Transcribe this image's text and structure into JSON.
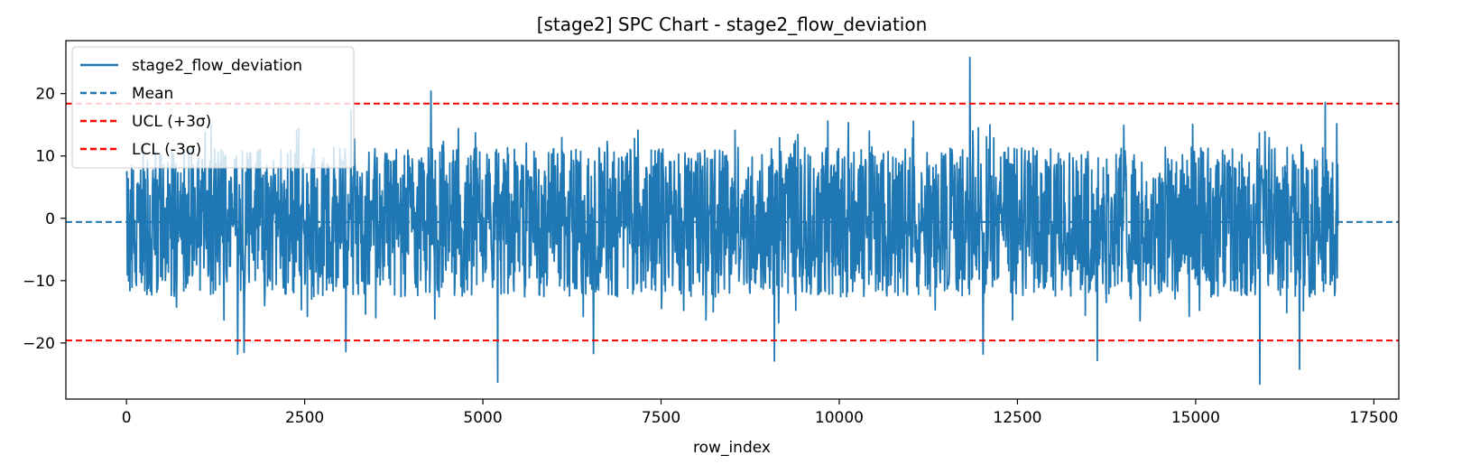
{
  "chart_data": {
    "type": "line",
    "title": "[stage2] SPC Chart - stage2_flow_deviation",
    "xlabel": "row_index",
    "ylabel": "",
    "xlim": [
      -850,
      17850
    ],
    "ylim": [
      -29.0,
      28.5
    ],
    "x_ticks": [
      0,
      2500,
      5000,
      7500,
      10000,
      12500,
      15000,
      17500
    ],
    "y_ticks": [
      -20,
      -10,
      0,
      10,
      20
    ],
    "grid": false,
    "legend": "top-left",
    "n_points": 17000,
    "series": [
      {
        "name": "stage2_flow_deviation",
        "style": "solid",
        "color": "#1f77b4",
        "typical_range": [
          -12,
          12
        ],
        "notable_points": [
          [
            1560,
            -21.8
          ],
          [
            1650,
            -21.5
          ],
          [
            1940,
            -14.0
          ],
          [
            3080,
            -21.4
          ],
          [
            3150,
            17.4
          ],
          [
            4270,
            20.4
          ],
          [
            5210,
            -26.3
          ],
          [
            6550,
            -21.7
          ],
          [
            9090,
            -22.9
          ],
          [
            11830,
            25.8
          ],
          [
            12020,
            -21.8
          ],
          [
            13620,
            -22.8
          ],
          [
            15900,
            -26.6
          ],
          [
            16460,
            -24.2
          ],
          [
            16820,
            18.6
          ]
        ]
      },
      {
        "name": "Mean",
        "style": "dashed",
        "color": "#1f77b4",
        "value": -0.6
      },
      {
        "name": "UCL (+3σ)",
        "style": "dashed",
        "color": "#ff0000",
        "value": 18.4
      },
      {
        "name": "LCL (-3σ)",
        "style": "dashed",
        "color": "#ff0000",
        "value": -19.6
      }
    ]
  }
}
